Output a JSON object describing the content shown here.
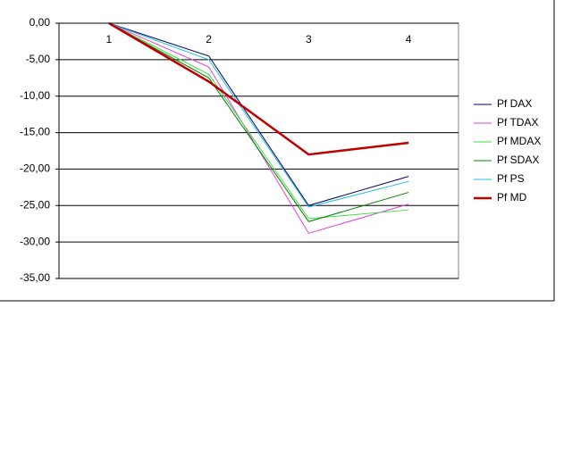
{
  "chart_data": {
    "type": "line",
    "categories": [
      "1",
      "2",
      "3",
      "4"
    ],
    "series": [
      {
        "name": "Pf DAX",
        "color": "#000066",
        "line_width": 1,
        "values": [
          0,
          -4.5,
          -25,
          -21
        ]
      },
      {
        "name": "Pf TDAX",
        "color": "#e040e0",
        "line_width": 1,
        "values": [
          0,
          -6,
          -28.8,
          -24.8
        ]
      },
      {
        "name": "Pf MDAX",
        "color": "#40e040",
        "line_width": 1,
        "values": [
          0,
          -7,
          -26.8,
          -25.6
        ]
      },
      {
        "name": "Pf SDAX",
        "color": "#008000",
        "line_width": 1,
        "values": [
          0,
          -7.5,
          -27.2,
          -23.2
        ]
      },
      {
        "name": "Pf PS",
        "color": "#20c0e0",
        "line_width": 1,
        "values": [
          0,
          -5,
          -25.2,
          -21.7
        ]
      },
      {
        "name": "Pf MD",
        "color": "#c00000",
        "line_width": 2.5,
        "values": [
          0,
          -8,
          -18,
          -16.4
        ]
      }
    ],
    "ylim": [
      0,
      -35
    ],
    "yticks": [
      {
        "value": 0,
        "label": "0,00"
      },
      {
        "value": -5,
        "label": "-5,00"
      },
      {
        "value": -10,
        "label": "-10,00"
      },
      {
        "value": -15,
        "label": "-15,00"
      },
      {
        "value": -20,
        "label": "-20,00"
      },
      {
        "value": -25,
        "label": "-25,00"
      },
      {
        "value": -30,
        "label": "-30,00"
      },
      {
        "value": -35,
        "label": "-35,00"
      }
    ],
    "grid": true,
    "legend": "right"
  }
}
